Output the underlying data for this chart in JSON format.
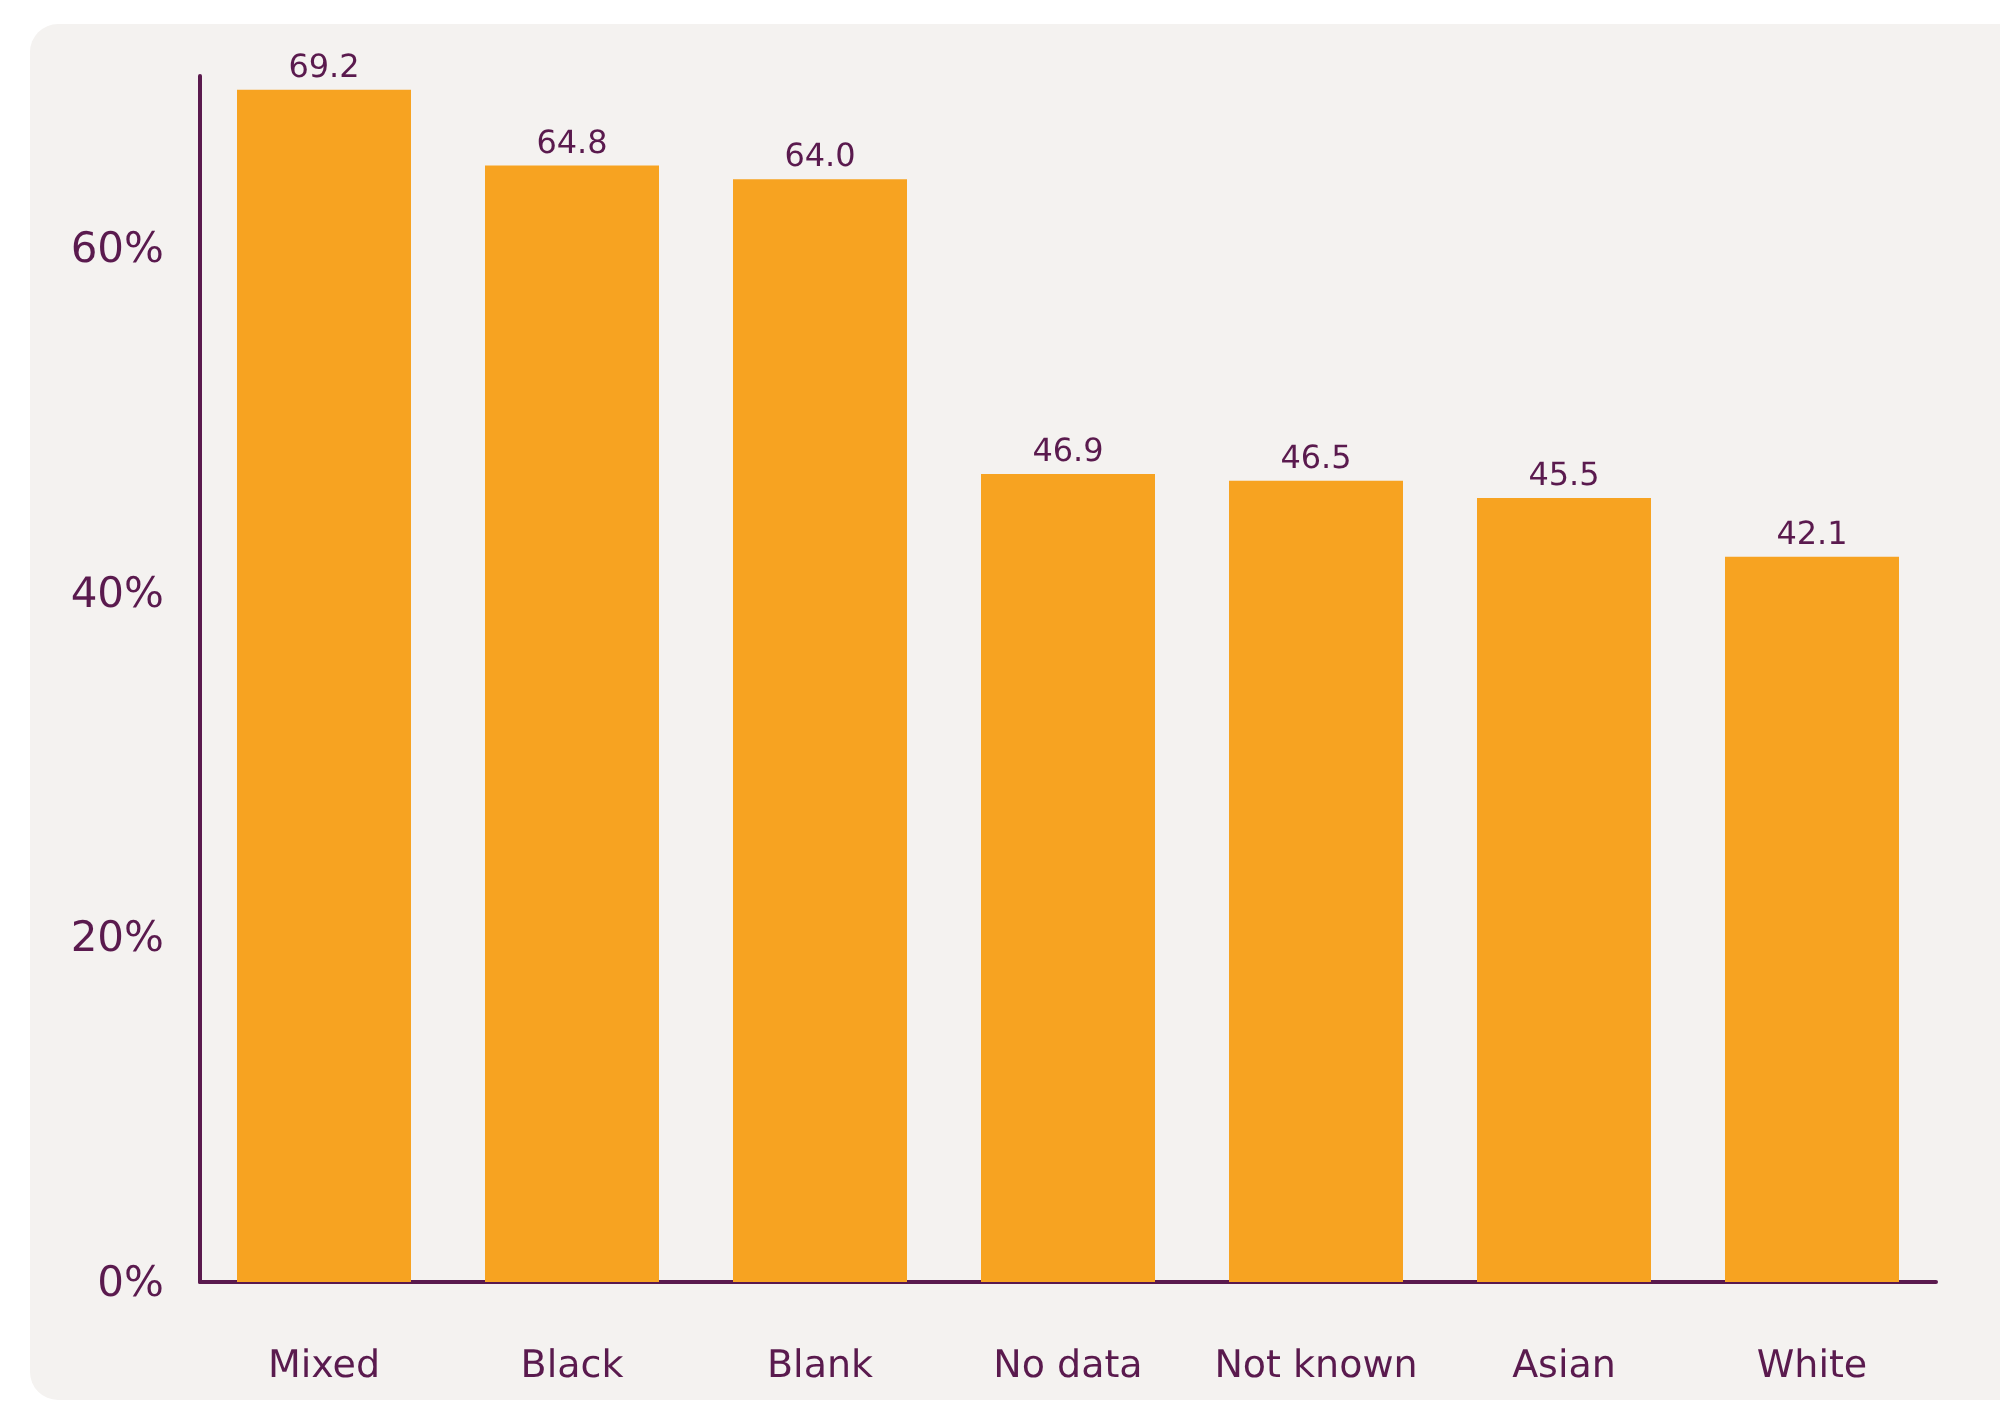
{
  "chart_data": {
    "type": "bar",
    "categories": [
      "Mixed",
      "Black",
      "Blank",
      "No data",
      "Not known",
      "Asian",
      "White"
    ],
    "values": [
      69.2,
      64.8,
      64.0,
      46.9,
      46.5,
      45.5,
      42.1
    ],
    "color": "#f7a321",
    "ylim": [
      0,
      70
    ],
    "yticks": [
      {
        "value": 0,
        "label": "0%"
      },
      {
        "value": 20,
        "label": "20%"
      },
      {
        "value": 40,
        "label": "40%"
      },
      {
        "value": 60,
        "label": "60%"
      }
    ],
    "value_labels": [
      "69.2",
      "64.8",
      "64.0",
      "46.9",
      "46.5",
      "45.5",
      "42.1"
    ]
  }
}
